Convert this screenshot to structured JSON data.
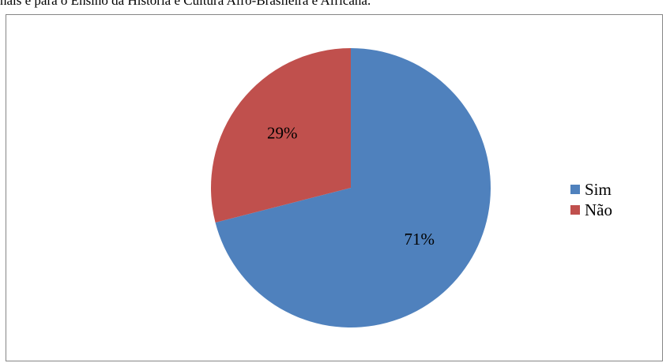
{
  "caption": "nais e para o Ensino da História e Cultura Afro-Brasileira e Africana.",
  "chart_data": {
    "type": "pie",
    "title": "",
    "categories": [
      "Sim",
      "Não"
    ],
    "values": [
      71,
      29
    ],
    "labels": [
      "71%",
      "29%"
    ],
    "colors": [
      "#4F81BD",
      "#C0504D"
    ],
    "legend_position": "right",
    "start_angle": "12 o'clock, clockwise"
  }
}
